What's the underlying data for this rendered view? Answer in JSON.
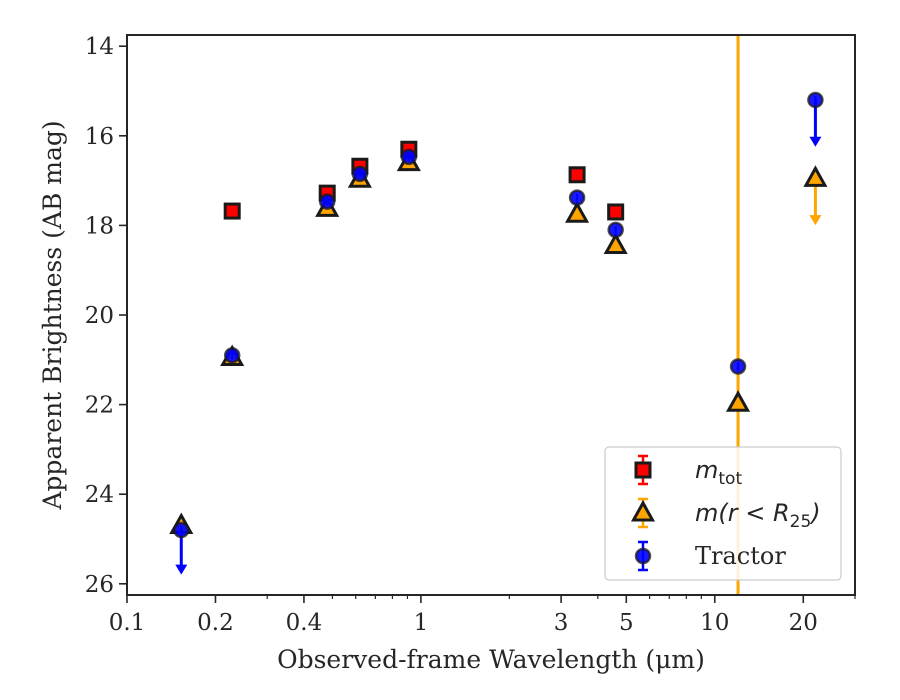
{
  "chart_data": {
    "type": "scatter",
    "title": "",
    "xlabel": "Observed-frame Wavelength (μm)",
    "ylabel": "Apparent Brightness (AB mag)",
    "x_scale": "log",
    "y_inverted": true,
    "xlim": [
      0.1,
      30
    ],
    "ylim": [
      26.25,
      13.75
    ],
    "x_ticks": [
      {
        "value": 0.1,
        "label": "0.1"
      },
      {
        "value": 0.2,
        "label": "0.2"
      },
      {
        "value": 0.4,
        "label": "0.4"
      },
      {
        "value": 1,
        "label": "1"
      },
      {
        "value": 3,
        "label": "3"
      },
      {
        "value": 5,
        "label": "5"
      },
      {
        "value": 10,
        "label": "10"
      },
      {
        "value": 20,
        "label": "20"
      }
    ],
    "x_minor_ticks": [
      0.3,
      0.5,
      0.6,
      0.7,
      0.8,
      0.9,
      2,
      4,
      6,
      7,
      8,
      9,
      30
    ],
    "y_ticks": [
      {
        "value": 14,
        "label": "14"
      },
      {
        "value": 16,
        "label": "16"
      },
      {
        "value": 18,
        "label": "18"
      },
      {
        "value": 20,
        "label": "20"
      },
      {
        "value": 22,
        "label": "22"
      },
      {
        "value": 24,
        "label": "24"
      },
      {
        "value": 26,
        "label": "26"
      }
    ],
    "grid": false,
    "legend_position": "bottom-right",
    "series": [
      {
        "name": "m_tot",
        "legend_main": "m",
        "legend_sub": "tot",
        "marker": "square",
        "color": "#ff0000",
        "edge": "#1a1a1a",
        "points": [
          {
            "x": 0.228,
            "y": 17.68
          },
          {
            "x": 0.48,
            "y": 17.28
          },
          {
            "x": 0.62,
            "y": 16.68
          },
          {
            "x": 0.91,
            "y": 16.3
          },
          {
            "x": 3.4,
            "y": 16.87
          },
          {
            "x": 4.6,
            "y": 17.7
          }
        ]
      },
      {
        "name": "m(r<R25)",
        "legend_main": "m(r < R",
        "legend_sub": "25",
        "legend_tail": ")",
        "marker": "triangle",
        "color": "#ffa500",
        "edge": "#1a1a1a",
        "points": [
          {
            "x": 0.153,
            "y": 24.7,
            "upper_limit": false
          },
          {
            "x": 0.228,
            "y": 20.95,
            "upper_limit": false
          },
          {
            "x": 0.48,
            "y": 17.62,
            "upper_limit": false
          },
          {
            "x": 0.62,
            "y": 16.97,
            "upper_limit": false
          },
          {
            "x": 0.91,
            "y": 16.6,
            "upper_limit": false
          },
          {
            "x": 3.4,
            "y": 17.75,
            "upper_limit": false
          },
          {
            "x": 4.6,
            "y": 18.45,
            "upper_limit": false
          },
          {
            "x": 12.0,
            "y": 21.97,
            "upper_limit": false
          },
          {
            "x": 22.0,
            "y": 16.95,
            "upper_limit": true,
            "arrow_to": 17.95
          }
        ]
      },
      {
        "name": "Tractor",
        "legend_main": "Tractor",
        "marker": "circle",
        "color": "#0000ff",
        "edge": "#1a1a1a",
        "points": [
          {
            "x": 0.153,
            "y": 24.8,
            "upper_limit": true,
            "arrow_to": 25.75
          },
          {
            "x": 0.228,
            "y": 20.9,
            "upper_limit": false
          },
          {
            "x": 0.48,
            "y": 17.47,
            "upper_limit": false
          },
          {
            "x": 0.62,
            "y": 16.85,
            "upper_limit": false
          },
          {
            "x": 0.91,
            "y": 16.47,
            "upper_limit": false
          },
          {
            "x": 3.4,
            "y": 17.38,
            "upper_limit": false
          },
          {
            "x": 4.6,
            "y": 18.1,
            "upper_limit": false
          },
          {
            "x": 12.0,
            "y": 21.15,
            "upper_limit": false
          },
          {
            "x": 22.0,
            "y": 15.2,
            "upper_limit": true,
            "arrow_to": 16.2
          }
        ]
      }
    ],
    "vertical_line": {
      "x": 12.0,
      "color": "#ffa500"
    }
  }
}
